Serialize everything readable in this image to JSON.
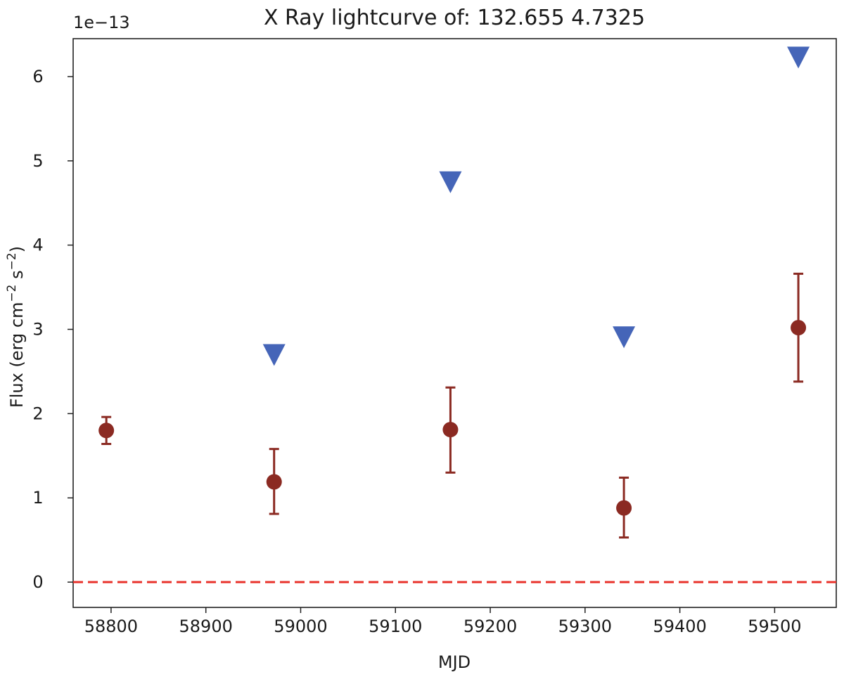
{
  "chart_data": {
    "type": "scatter",
    "title": "X Ray lightcurve of: 132.655 4.7325",
    "xlabel": "MJD",
    "ylabel": "Flux (erg cm",
    "ylabel_unit_a": "−2",
    "ylabel_mid": " s",
    "ylabel_unit_b": "−2",
    "ylabel_end": ")",
    "y_offset_label": "1e−13",
    "y_scale": 1e-13,
    "xlim": [
      58760,
      59565
    ],
    "ylim": [
      -0.3,
      6.45
    ],
    "xticks": [
      58800,
      58900,
      59000,
      59100,
      59200,
      59300,
      59400,
      59500
    ],
    "xtick_labels": [
      "58800",
      "58900",
      "59000",
      "59100",
      "59200",
      "59300",
      "59400",
      "59500"
    ],
    "yticks": [
      0,
      1,
      2,
      3,
      4,
      5,
      6
    ],
    "ytick_labels": [
      "0",
      "1",
      "2",
      "3",
      "4",
      "5",
      "6"
    ],
    "reference_line": {
      "y": 0,
      "style": "dashed",
      "color": "#e8322b"
    },
    "series": [
      {
        "marker": "circle",
        "color": "#8b2a22",
        "points": [
          {
            "x": 58795,
            "y": 1.8,
            "yerr_low": 0.16,
            "yerr_high": 0.16
          },
          {
            "x": 58972,
            "y": 1.19,
            "yerr_low": 0.38,
            "yerr_high": 0.39
          },
          {
            "x": 59158,
            "y": 1.81,
            "yerr_low": 0.51,
            "yerr_high": 0.5
          },
          {
            "x": 59341,
            "y": 0.88,
            "yerr_low": 0.35,
            "yerr_high": 0.36
          },
          {
            "x": 59525,
            "y": 3.02,
            "yerr_low": 0.64,
            "yerr_high": 0.64
          }
        ]
      },
      {
        "marker": "triangle-down",
        "color": "#4565b8",
        "points": [
          {
            "x": 58972,
            "y": 2.7
          },
          {
            "x": 59158,
            "y": 4.75
          },
          {
            "x": 59341,
            "y": 2.91
          },
          {
            "x": 59525,
            "y": 6.23
          }
        ]
      }
    ],
    "grid": false
  }
}
